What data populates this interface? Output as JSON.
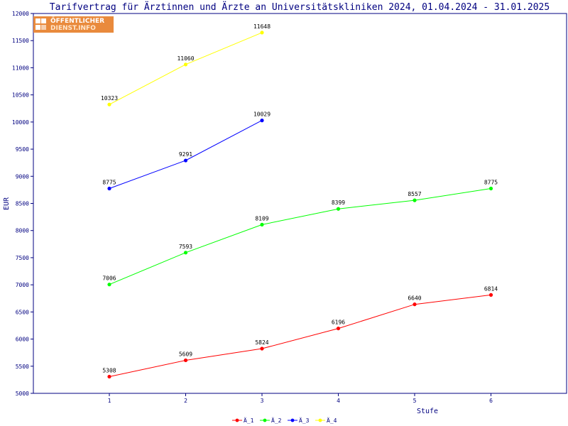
{
  "chart_data": {
    "type": "line",
    "title": "Tarifvertrag für Ärztinnen und Ärzte an Universitätskliniken 2024, 01.04.2024 - 31.01.2025",
    "xlabel": "Stufe",
    "ylabel": "EUR",
    "x_ticks": [
      "1",
      "2",
      "3",
      "4",
      "5",
      "6"
    ],
    "xlim": [
      0,
      7
    ],
    "ylim": [
      5000,
      12000
    ],
    "y_ticks": [
      5000,
      5500,
      6000,
      6500,
      7000,
      7500,
      8000,
      8500,
      9000,
      9500,
      10000,
      10500,
      11000,
      11500,
      12000
    ],
    "grid": false,
    "legend_position": "bottom-center",
    "series": [
      {
        "name": "Ä_1",
        "color": "#ff0000",
        "x": [
          1,
          2,
          3,
          4,
          5,
          6
        ],
        "values": [
          5308,
          5609,
          5824,
          6196,
          6640,
          6814
        ]
      },
      {
        "name": "Ä_2",
        "color": "#00ff00",
        "x": [
          1,
          2,
          3,
          4,
          5,
          6
        ],
        "values": [
          7006,
          7593,
          8109,
          8399,
          8557,
          8775
        ]
      },
      {
        "name": "Ä_3",
        "color": "#0000ff",
        "x": [
          1,
          2,
          3
        ],
        "values": [
          8775,
          9291,
          10029
        ]
      },
      {
        "name": "Ä_4",
        "color": "#ffff00",
        "x": [
          1,
          2,
          3
        ],
        "values": [
          10323,
          11060,
          11648
        ]
      }
    ]
  },
  "logo": {
    "line1": "ÖFFENTLICHER",
    "line2": "DIENST.INFO"
  },
  "colors": {
    "axis": "#000080",
    "text": "#000080"
  }
}
